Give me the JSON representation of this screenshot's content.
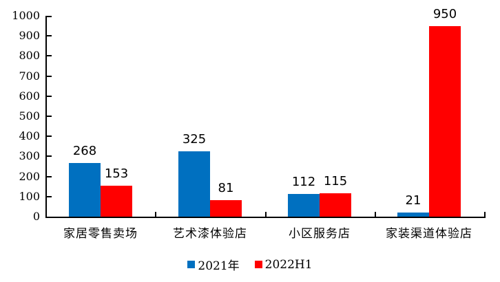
{
  "chart_data": {
    "type": "bar",
    "title": "",
    "categories": [
      "家居零售卖场",
      "艺术漆体验店",
      "小区服务店",
      "家装渠道体验店"
    ],
    "series": [
      {
        "name": "2021年",
        "key": "2021",
        "color": "#0070C0",
        "values": [
          268,
          325,
          112,
          21
        ]
      },
      {
        "name": "2022H1",
        "key": "2022h1",
        "color": "#FF0000",
        "values": [
          153,
          81,
          115,
          950
        ]
      }
    ],
    "xlabel": "",
    "ylabel": "",
    "ylim": [
      0,
      1000
    ],
    "ytick_step": 100,
    "yticks": [
      0,
      100,
      200,
      300,
      400,
      500,
      600,
      700,
      800,
      900,
      1000
    ],
    "grid": false,
    "data_labels_shown": true,
    "legend_position": "bottom",
    "tick_style": "inside"
  },
  "colors": {
    "series_2021": "#0070C0",
    "series_2022h1": "#FF0000",
    "axis": "#000000",
    "text": "#000000",
    "background": "#FFFFFF"
  }
}
